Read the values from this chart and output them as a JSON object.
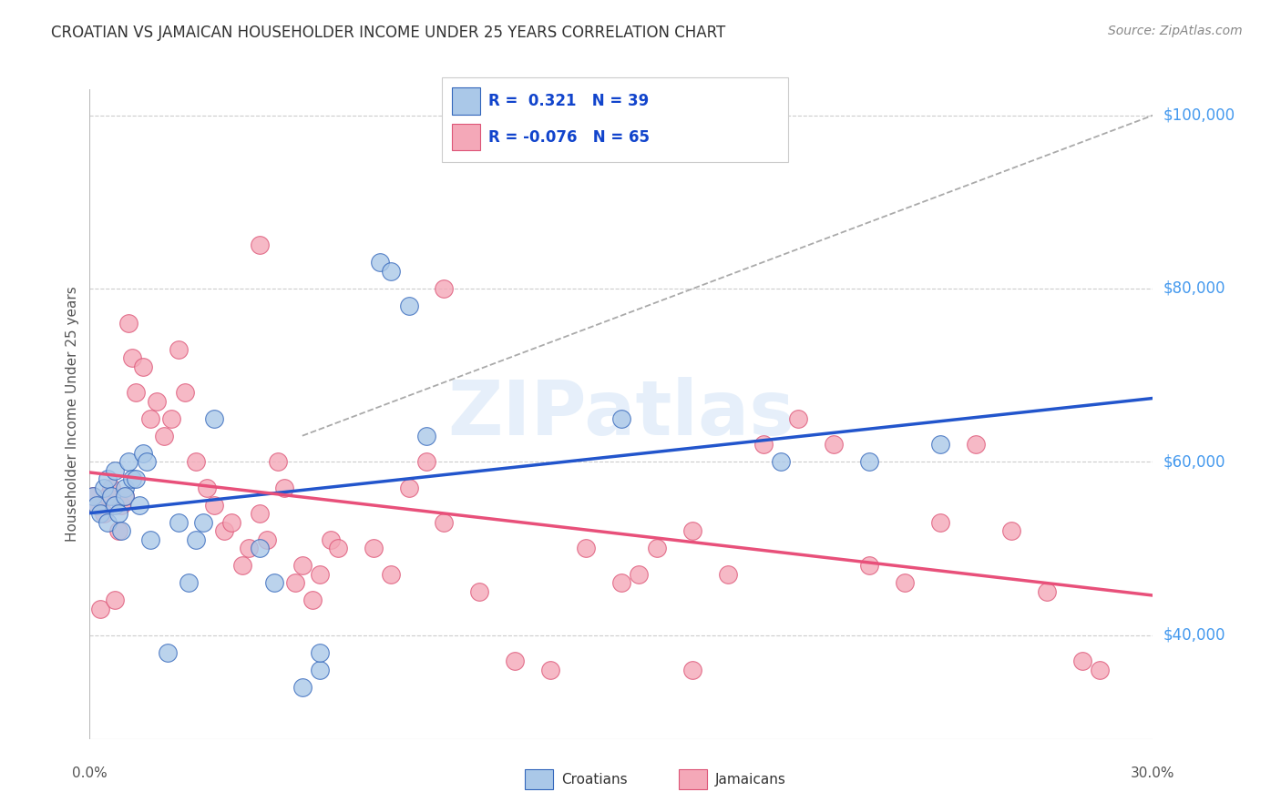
{
  "title": "CROATIAN VS JAMAICAN HOUSEHOLDER INCOME UNDER 25 YEARS CORRELATION CHART",
  "source": "Source: ZipAtlas.com",
  "ylabel": "Householder Income Under 25 years",
  "xlim": [
    0.0,
    0.3
  ],
  "ylim": [
    28000,
    103000
  ],
  "yticks": [
    40000,
    60000,
    80000,
    100000
  ],
  "ytick_labels": [
    "$40,000",
    "$60,000",
    "$80,000",
    "$100,000"
  ],
  "legend_r_croatian": "0.321",
  "legend_n_croatian": "39",
  "legend_r_jamaican": "-0.076",
  "legend_n_jamaican": "65",
  "croatian_fill": "#aac8e8",
  "jamaican_fill": "#f4a8b8",
  "croatian_edge": "#3366bb",
  "jamaican_edge": "#dd5577",
  "croatian_line": "#2255cc",
  "jamaican_line": "#e8507a",
  "grid_color": "#cccccc",
  "bg_color": "#ffffff",
  "croatian_points_x": [
    0.001,
    0.002,
    0.003,
    0.004,
    0.005,
    0.005,
    0.006,
    0.007,
    0.007,
    0.008,
    0.009,
    0.01,
    0.01,
    0.011,
    0.012,
    0.013,
    0.014,
    0.015,
    0.016,
    0.017,
    0.022,
    0.025,
    0.028,
    0.03,
    0.032,
    0.035,
    0.048,
    0.052,
    0.06,
    0.065,
    0.065,
    0.082,
    0.085,
    0.09,
    0.095,
    0.15,
    0.195,
    0.22,
    0.24
  ],
  "croatian_points_y": [
    56000,
    55000,
    54000,
    57000,
    53000,
    58000,
    56000,
    55000,
    59000,
    54000,
    52000,
    57000,
    56000,
    60000,
    58000,
    58000,
    55000,
    61000,
    60000,
    51000,
    38000,
    53000,
    46000,
    51000,
    53000,
    65000,
    50000,
    46000,
    34000,
    36000,
    38000,
    83000,
    82000,
    78000,
    63000,
    65000,
    60000,
    60000,
    62000
  ],
  "jamaican_points_x": [
    0.001,
    0.002,
    0.003,
    0.004,
    0.005,
    0.006,
    0.007,
    0.008,
    0.009,
    0.01,
    0.011,
    0.012,
    0.013,
    0.015,
    0.017,
    0.019,
    0.021,
    0.023,
    0.025,
    0.027,
    0.03,
    0.033,
    0.035,
    0.038,
    0.04,
    0.043,
    0.045,
    0.048,
    0.05,
    0.053,
    0.055,
    0.058,
    0.06,
    0.063,
    0.065,
    0.068,
    0.07,
    0.08,
    0.085,
    0.09,
    0.095,
    0.1,
    0.11,
    0.12,
    0.13,
    0.14,
    0.15,
    0.16,
    0.17,
    0.18,
    0.19,
    0.2,
    0.21,
    0.22,
    0.23,
    0.24,
    0.25,
    0.26,
    0.27,
    0.28,
    0.048,
    0.1,
    0.155,
    0.17,
    0.285
  ],
  "jamaican_points_y": [
    56000,
    55000,
    43000,
    54000,
    56000,
    57000,
    44000,
    52000,
    55000,
    56000,
    76000,
    72000,
    68000,
    71000,
    65000,
    67000,
    63000,
    65000,
    73000,
    68000,
    60000,
    57000,
    55000,
    52000,
    53000,
    48000,
    50000,
    54000,
    51000,
    60000,
    57000,
    46000,
    48000,
    44000,
    47000,
    51000,
    50000,
    50000,
    47000,
    57000,
    60000,
    53000,
    45000,
    37000,
    36000,
    50000,
    46000,
    50000,
    52000,
    47000,
    62000,
    65000,
    62000,
    48000,
    46000,
    53000,
    62000,
    52000,
    45000,
    37000,
    85000,
    80000,
    47000,
    36000,
    36000
  ],
  "ref_line_x": [
    0.06,
    0.3
  ],
  "ref_line_y": [
    63000,
    100000
  ]
}
